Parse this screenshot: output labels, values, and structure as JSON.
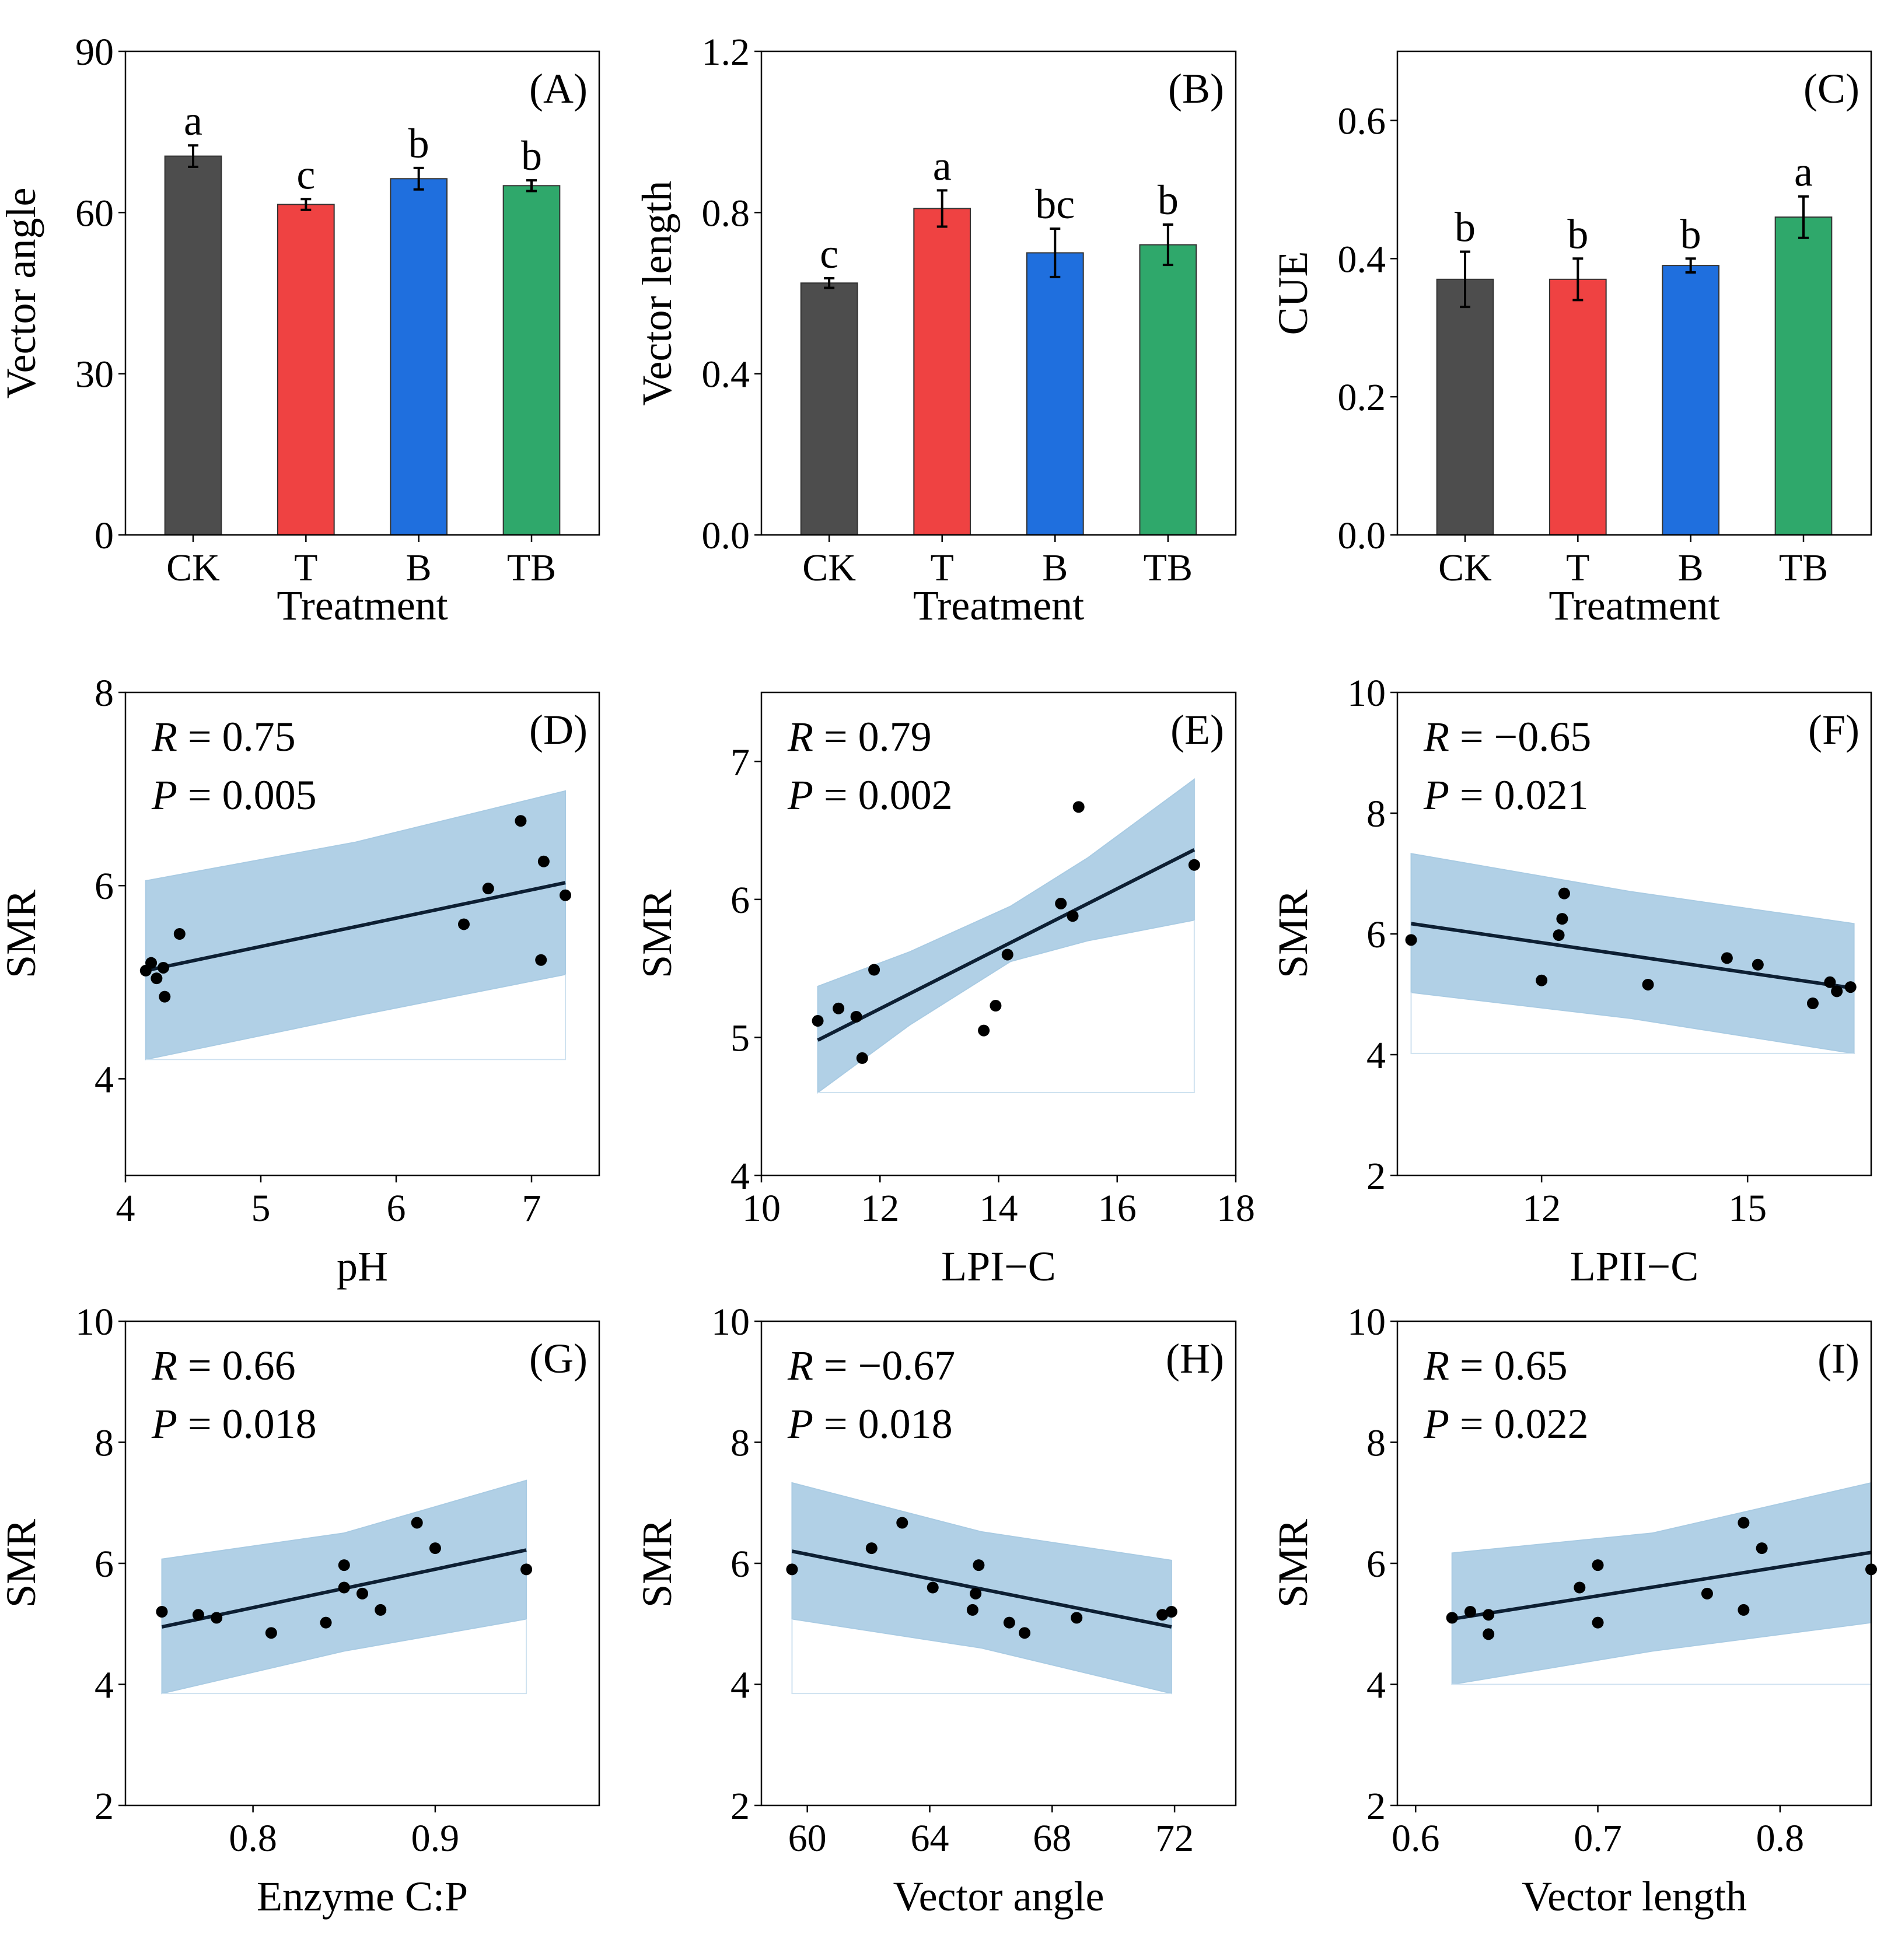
{
  "chart_data": [
    {
      "id": "A",
      "type": "bar",
      "panel_label": "(A)",
      "categories": [
        "CK",
        "T",
        "B",
        "TB"
      ],
      "values": [
        70.5,
        61.5,
        66.3,
        65.0
      ],
      "errors": [
        2.0,
        1.0,
        2.0,
        1.0
      ],
      "letters": [
        "a",
        "c",
        "b",
        "b"
      ],
      "colors": [
        "#4d4d4d",
        "#ef4242",
        "#1f6fde",
        "#2fa86b"
      ],
      "xlabel": "Treatment",
      "ylabel": "Vector angle",
      "ylim": [
        0,
        90
      ],
      "yticks": [
        0,
        30,
        60,
        90
      ],
      "ytick_labels": [
        "0",
        "30",
        "60",
        "90"
      ]
    },
    {
      "id": "B",
      "type": "bar",
      "panel_label": "(B)",
      "categories": [
        "CK",
        "T",
        "B",
        "TB"
      ],
      "values": [
        0.625,
        0.81,
        0.7,
        0.72
      ],
      "errors": [
        0.012,
        0.045,
        0.06,
        0.05
      ],
      "letters": [
        "c",
        "a",
        "bc",
        "b"
      ],
      "colors": [
        "#4d4d4d",
        "#ef4242",
        "#1f6fde",
        "#2fa86b"
      ],
      "xlabel": "Treatment",
      "ylabel": "Vector length",
      "ylim": [
        0,
        1.2
      ],
      "yticks": [
        0,
        0.4,
        0.8,
        1.2
      ],
      "ytick_labels": [
        "0.0",
        "0.4",
        "0.8",
        "1.2"
      ]
    },
    {
      "id": "C",
      "type": "bar",
      "panel_label": "(C)",
      "categories": [
        "CK",
        "T",
        "B",
        "TB"
      ],
      "values": [
        0.37,
        0.37,
        0.39,
        0.46
      ],
      "errors": [
        0.04,
        0.03,
        0.01,
        0.03
      ],
      "letters": [
        "b",
        "b",
        "b",
        "a"
      ],
      "colors": [
        "#4d4d4d",
        "#ef4242",
        "#1f6fde",
        "#2fa86b"
      ],
      "xlabel": "Treatment",
      "ylabel": "CUE",
      "ylim": [
        0,
        0.7
      ],
      "yticks": [
        0,
        0.2,
        0.4,
        0.6
      ],
      "ytick_labels": [
        "0.0",
        "0.2",
        "0.4",
        "0.6"
      ]
    },
    {
      "id": "D",
      "type": "scatter",
      "panel_label": "(D)",
      "xlabel": "pH",
      "ylabel": "SMR",
      "xlim": [
        4.0,
        7.5
      ],
      "ylim": [
        3.0,
        8.0
      ],
      "xticks": [
        4,
        5,
        6,
        7
      ],
      "xtick_labels": [
        "4",
        "5",
        "6",
        "7"
      ],
      "yticks": [
        4,
        6,
        8
      ],
      "ytick_labels": [
        "4",
        "6",
        "8"
      ],
      "R_label": "R",
      "R_text": " = 0.75",
      "P_label": "P",
      "P_text": " = 0.005",
      "points": [
        [
          4.15,
          5.12
        ],
        [
          4.19,
          5.2
        ],
        [
          4.23,
          5.04
        ],
        [
          4.28,
          5.15
        ],
        [
          4.29,
          4.85
        ],
        [
          4.4,
          5.5
        ],
        [
          6.5,
          5.6
        ],
        [
          6.68,
          5.97
        ],
        [
          6.92,
          6.67
        ],
        [
          7.07,
          5.23
        ],
        [
          7.09,
          6.25
        ],
        [
          7.25,
          5.9
        ]
      ],
      "fit": [
        4.15,
        5.12,
        7.25,
        6.03
      ],
      "band_upper": [
        [
          4.15,
          6.05
        ],
        [
          5.7,
          6.45
        ],
        [
          7.25,
          6.98
        ]
      ],
      "band_lower": [
        [
          4.15,
          4.2
        ],
        [
          5.7,
          4.65
        ],
        [
          7.25,
          5.08
        ]
      ],
      "band_base": 4.2
    },
    {
      "id": "E",
      "type": "scatter",
      "panel_label": "(E)",
      "xlabel": "LPI−C",
      "ylabel": "SMR",
      "xlim": [
        10,
        18
      ],
      "ylim": [
        4.0,
        7.5
      ],
      "xticks": [
        10,
        12,
        14,
        16,
        18
      ],
      "xtick_labels": [
        "10",
        "12",
        "14",
        "16",
        "18"
      ],
      "yticks": [
        4,
        5,
        6,
        7
      ],
      "ytick_labels": [
        "4",
        "5",
        "6",
        "7"
      ],
      "R_label": "R",
      "R_text": " = 0.79",
      "P_label": "P",
      "P_text": " = 0.002",
      "points": [
        [
          10.95,
          5.12
        ],
        [
          11.3,
          5.21
        ],
        [
          11.6,
          5.15
        ],
        [
          11.7,
          4.85
        ],
        [
          11.9,
          5.49
        ],
        [
          13.75,
          5.05
        ],
        [
          13.95,
          5.23
        ],
        [
          14.15,
          5.6
        ],
        [
          15.05,
          5.97
        ],
        [
          15.25,
          5.88
        ],
        [
          15.35,
          6.67
        ],
        [
          17.3,
          6.25
        ]
      ],
      "fit": [
        10.95,
        4.98,
        17.3,
        6.36
      ],
      "band_upper": [
        [
          10.95,
          5.37
        ],
        [
          12.5,
          5.62
        ],
        [
          14.2,
          5.95
        ],
        [
          15.5,
          6.3
        ],
        [
          17.3,
          6.87
        ]
      ],
      "band_lower": [
        [
          10.95,
          4.6
        ],
        [
          12.5,
          5.09
        ],
        [
          14.2,
          5.55
        ],
        [
          15.5,
          5.7
        ],
        [
          17.3,
          5.85
        ]
      ],
      "band_base": 4.6
    },
    {
      "id": "F",
      "type": "scatter",
      "panel_label": "(F)",
      "xlabel": "LPII−C",
      "ylabel": "SMR",
      "xlim": [
        9.9,
        16.8
      ],
      "ylim": [
        2.0,
        10.0
      ],
      "xticks": [
        12,
        15
      ],
      "xtick_labels": [
        "12",
        "15"
      ],
      "yticks": [
        2,
        4,
        6,
        8,
        10
      ],
      "ytick_labels": [
        "2",
        "4",
        "6",
        "8",
        "10"
      ],
      "R_label": "R",
      "R_text": " = −0.65",
      "P_label": "P",
      "P_text": " = 0.021",
      "points": [
        [
          10.1,
          5.9
        ],
        [
          12.0,
          5.23
        ],
        [
          12.25,
          5.98
        ],
        [
          12.3,
          6.25
        ],
        [
          12.33,
          6.67
        ],
        [
          13.55,
          5.16
        ],
        [
          14.7,
          5.6
        ],
        [
          15.15,
          5.49
        ],
        [
          15.95,
          4.85
        ],
        [
          16.2,
          5.2
        ],
        [
          16.3,
          5.05
        ],
        [
          16.5,
          5.12
        ]
      ],
      "fit": [
        10.1,
        6.17,
        16.55,
        5.1
      ],
      "band_upper": [
        [
          10.1,
          7.33
        ],
        [
          13.3,
          6.7
        ],
        [
          16.55,
          6.17
        ]
      ],
      "band_lower": [
        [
          10.1,
          5.03
        ],
        [
          13.3,
          4.6
        ],
        [
          16.55,
          4.02
        ]
      ],
      "band_base": 4.02
    },
    {
      "id": "G",
      "type": "scatter",
      "panel_label": "(G)",
      "xlabel": "Enzyme C:P",
      "ylabel": "SMR",
      "xlim": [
        0.73,
        0.99
      ],
      "ylim": [
        2.0,
        10.0
      ],
      "xticks": [
        0.8,
        0.9
      ],
      "xtick_labels": [
        "0.8",
        "0.9"
      ],
      "yticks": [
        2,
        4,
        6,
        8,
        10
      ],
      "ytick_labels": [
        "2",
        "4",
        "6",
        "8",
        "10"
      ],
      "R_label": "R",
      "R_text": " = 0.66",
      "P_label": "P",
      "P_text": " = 0.018",
      "points": [
        [
          0.75,
          5.2
        ],
        [
          0.77,
          5.15
        ],
        [
          0.78,
          5.1
        ],
        [
          0.81,
          4.85
        ],
        [
          0.84,
          5.02
        ],
        [
          0.85,
          5.6
        ],
        [
          0.85,
          5.97
        ],
        [
          0.86,
          5.5
        ],
        [
          0.87,
          5.23
        ],
        [
          0.89,
          6.67
        ],
        [
          0.9,
          6.25
        ],
        [
          0.95,
          5.9
        ]
      ],
      "fit": [
        0.75,
        4.95,
        0.95,
        6.22
      ],
      "band_upper": [
        [
          0.75,
          6.07
        ],
        [
          0.85,
          6.5
        ],
        [
          0.95,
          7.37
        ]
      ],
      "band_lower": [
        [
          0.75,
          3.85
        ],
        [
          0.85,
          4.55
        ],
        [
          0.95,
          5.08
        ]
      ],
      "band_base": 3.85
    },
    {
      "id": "H",
      "type": "scatter",
      "panel_label": "(H)",
      "xlabel": "Vector angle",
      "ylabel": "SMR",
      "xlim": [
        58.5,
        74.0
      ],
      "ylim": [
        2.0,
        10.0
      ],
      "xticks": [
        60,
        64,
        68,
        72
      ],
      "xtick_labels": [
        "60",
        "64",
        "68",
        "72"
      ],
      "yticks": [
        2,
        4,
        6,
        8,
        10
      ],
      "ytick_labels": [
        "2",
        "4",
        "6",
        "8",
        "10"
      ],
      "R_label": "R",
      "R_text": " = −0.67",
      "P_label": "P",
      "P_text": " = 0.018",
      "points": [
        [
          59.5,
          5.9
        ],
        [
          62.1,
          6.25
        ],
        [
          63.1,
          6.67
        ],
        [
          64.1,
          5.6
        ],
        [
          65.4,
          5.23
        ],
        [
          65.5,
          5.5
        ],
        [
          65.6,
          5.97
        ],
        [
          66.6,
          5.02
        ],
        [
          67.1,
          4.85
        ],
        [
          68.8,
          5.1
        ],
        [
          71.6,
          5.15
        ],
        [
          71.9,
          5.2
        ]
      ],
      "fit": [
        59.5,
        6.2,
        71.9,
        4.95
      ],
      "band_upper": [
        [
          59.5,
          7.33
        ],
        [
          65.7,
          6.52
        ],
        [
          71.9,
          6.05
        ]
      ],
      "band_lower": [
        [
          59.5,
          5.08
        ],
        [
          65.7,
          4.6
        ],
        [
          71.9,
          3.85
        ]
      ],
      "band_base": 3.85
    },
    {
      "id": "I",
      "type": "scatter",
      "panel_label": "(I)",
      "xlabel": "Vector length",
      "ylabel": "SMR",
      "xlim": [
        0.59,
        0.85
      ],
      "ylim": [
        2.0,
        10.0
      ],
      "xticks": [
        0.6,
        0.7,
        0.8
      ],
      "xtick_labels": [
        "0.6",
        "0.7",
        "0.8"
      ],
      "yticks": [
        2,
        4,
        6,
        8,
        10
      ],
      "ytick_labels": [
        "2",
        "4",
        "6",
        "8",
        "10"
      ],
      "R_label": "R",
      "R_text": " = 0.65",
      "P_label": "P",
      "P_text": " = 0.022",
      "points": [
        [
          0.62,
          5.1
        ],
        [
          0.63,
          5.2
        ],
        [
          0.64,
          5.15
        ],
        [
          0.64,
          4.83
        ],
        [
          0.69,
          5.6
        ],
        [
          0.7,
          5.97
        ],
        [
          0.7,
          5.02
        ],
        [
          0.76,
          5.5
        ],
        [
          0.78,
          6.67
        ],
        [
          0.78,
          5.23
        ],
        [
          0.79,
          6.25
        ],
        [
          0.85,
          5.9
        ]
      ],
      "fit": [
        0.62,
        5.08,
        0.85,
        6.18
      ],
      "band_upper": [
        [
          0.62,
          6.17
        ],
        [
          0.73,
          6.5
        ],
        [
          0.85,
          7.33
        ]
      ],
      "band_lower": [
        [
          0.62,
          4.0
        ],
        [
          0.73,
          4.55
        ],
        [
          0.85,
          5.02
        ]
      ],
      "band_base": 4.0
    }
  ]
}
